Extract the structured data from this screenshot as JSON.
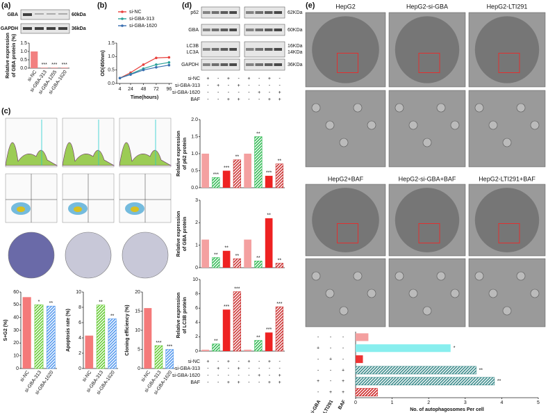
{
  "panel_labels": [
    "(a)",
    "(b)",
    "(c)",
    "(d)",
    "(e)"
  ],
  "blot_a": [
    {
      "label": "GBA",
      "size": "60kDa"
    },
    {
      "label": "GAPDH",
      "size": "36kDa"
    }
  ],
  "blot_d": [
    {
      "labels": [
        "p62"
      ],
      "sizes": [
        "62KDa"
      ]
    },
    {
      "labels": [
        "GBA"
      ],
      "sizes": [
        "60KDa"
      ]
    },
    {
      "labels": [
        "LC3B",
        "LC3A"
      ],
      "sizes": [
        "16KDa",
        "14KDa"
      ]
    },
    {
      "labels": [
        "GAPDH"
      ],
      "sizes": [
        "36KDa"
      ]
    }
  ],
  "treatment_d": [
    {
      "name": "si-NC",
      "signs": [
        "+",
        "-",
        "+",
        "-",
        "+",
        "-",
        "+",
        "-"
      ]
    },
    {
      "name": "si-GBA-313",
      "signs": [
        "-",
        "+",
        "-",
        "+",
        "-",
        "-",
        "-",
        "-"
      ]
    },
    {
      "name": "si-GBA-1620",
      "signs": [
        "-",
        "-",
        "-",
        "-",
        "-",
        "+",
        "-",
        "+"
      ]
    },
    {
      "name": "BAF",
      "signs": [
        "-",
        "-",
        "+",
        "+",
        "-",
        "-",
        "+",
        "+"
      ]
    }
  ],
  "tem_titles": [
    "HepG2",
    "HepG2-si-GBA",
    "HepG2-LTI291",
    "HepG2+BAF",
    "HepG2-si-GBA+BAF",
    "HepG2-LTI291+BAF"
  ],
  "treatment_e": {
    "columns": [
      "si-GBA",
      "LTI291",
      "BAF"
    ],
    "rows": [
      [
        "-",
        "-",
        "-"
      ],
      [
        "+",
        "-",
        "-"
      ],
      [
        "-",
        "+",
        "-"
      ],
      [
        "-",
        "-",
        "+"
      ],
      [
        "+",
        "-",
        "+"
      ],
      [
        "-",
        "+",
        "+"
      ]
    ]
  },
  "chart_data": [
    {
      "type": "bar",
      "ylabel": [
        "Relative expression",
        "of GBA protein (%)"
      ],
      "categories": [
        "si-NC",
        "si-GBA-313",
        "si-GBA-1255",
        "si-GBA-1620"
      ],
      "values": [
        1.0,
        0.03,
        0.03,
        0.03
      ],
      "colors": [
        "#f28080",
        "#f28080",
        "#f28080",
        "#f28080"
      ],
      "patterns": [
        "solid",
        "solid",
        "solid",
        "solid"
      ],
      "annotations": [
        null,
        "***",
        "***",
        "***"
      ],
      "ylim": [
        0,
        1.5
      ],
      "yticks": [
        {
          "value": 0,
          "label": "0.0"
        },
        {
          "value": 0.5,
          "label": "0.5"
        },
        {
          "value": 1,
          "label": "1.0"
        },
        {
          "value": 1.5,
          "label": "1.5"
        }
      ]
    },
    {
      "type": "line",
      "xlabel": "Time(hours)",
      "ylabel": [
        "OD(450nm)"
      ],
      "x": [
        4,
        24,
        48,
        72,
        96
      ],
      "series": [
        {
          "name": "si-NC",
          "color": "#e8403c",
          "values": [
            0.2,
            0.4,
            0.7,
            0.95,
            0.97
          ]
        },
        {
          "name": "si-GBA-313",
          "color": "#2aa198",
          "values": [
            0.2,
            0.35,
            0.55,
            0.7,
            0.78
          ]
        },
        {
          "name": "si-GBA-1620",
          "color": "#3a6fb0",
          "values": [
            0.2,
            0.33,
            0.5,
            0.6,
            0.68
          ]
        }
      ],
      "xlim": [
        -2,
        102
      ],
      "xticks": [
        4,
        24,
        48,
        72,
        96
      ],
      "ylim": [
        0,
        1.5
      ],
      "yticks": [
        {
          "value": 0,
          "label": "0.0"
        },
        {
          "value": 0.5,
          "label": "0.5"
        },
        {
          "value": 1,
          "label": "1.0"
        },
        {
          "value": 1.5,
          "label": "1.5"
        }
      ]
    },
    {
      "type": "bar",
      "ylabel": [
        "S+G2 (%)"
      ],
      "categories": [
        "si-NC",
        "si-GBA-313",
        "si-GBA-1620"
      ],
      "values": [
        56,
        50,
        49
      ],
      "colors": [
        "#f47a7a",
        "#66cc33",
        "#5599ee"
      ],
      "patterns": [
        "solid",
        "hatch",
        "hatch"
      ],
      "annotations": [
        null,
        "*",
        "**"
      ],
      "ylim": [
        0,
        60
      ],
      "yticks": [
        0,
        10,
        20,
        30,
        40,
        50,
        60
      ]
    },
    {
      "type": "bar",
      "ylabel": [
        "Apoptosis rate (%)"
      ],
      "categories": [
        "si-NC",
        "si-GBA-313",
        "si-GBA-1620"
      ],
      "values": [
        4.3,
        8.3,
        6.5
      ],
      "colors": [
        "#f47a7a",
        "#66cc33",
        "#5599ee"
      ],
      "patterns": [
        "solid",
        "hatch",
        "hatch"
      ],
      "annotations": [
        null,
        "**",
        "**"
      ],
      "ylim": [
        0,
        10
      ],
      "yticks": [
        0,
        2,
        4,
        6,
        8,
        10
      ]
    },
    {
      "type": "bar",
      "ylabel": [
        "Cloning efficiency (%)"
      ],
      "categories": [
        "si-NC",
        "si-GBA-313",
        "si-GBA-1620"
      ],
      "values": [
        15.8,
        6,
        5
      ],
      "colors": [
        "#f47a7a",
        "#66cc33",
        "#5599ee"
      ],
      "patterns": [
        "solid",
        "hatch",
        "hatch"
      ],
      "annotations": [
        null,
        "***",
        "***"
      ],
      "ylim": [
        0,
        20
      ],
      "yticks": [
        0,
        5,
        10,
        15,
        20
      ]
    },
    {
      "type": "bar",
      "ylabel": [
        "Relative expression",
        "of p62 protein"
      ],
      "values": [
        1,
        0.3,
        0.5,
        0.82,
        1,
        1.5,
        0.35,
        0.7
      ],
      "colors": [
        "#f4a0a0",
        "#33bb55",
        "#ee2222",
        "#cc3333",
        "#f4a0a0",
        "#33bb55",
        "#ee2222",
        "#cc3333"
      ],
      "patterns": [
        "solid",
        "hatch",
        "solid",
        "hatch",
        "solid",
        "hatch",
        "solid",
        "hatch"
      ],
      "annotations": [
        null,
        "***",
        "***",
        "**",
        null,
        "**",
        "***",
        "**"
      ],
      "ylim": [
        0,
        2
      ],
      "yticks": [
        {
          "value": 0,
          "label": "0.0"
        },
        {
          "value": 0.5,
          "label": "0.5"
        },
        {
          "value": 1,
          "label": "1.0"
        },
        {
          "value": 1.5,
          "label": "1.5"
        },
        {
          "value": 2,
          "label": "2.0"
        }
      ]
    },
    {
      "type": "bar",
      "ylabel": [
        "Relative expression",
        "of GBA protein"
      ],
      "values": [
        1.25,
        0.45,
        0.75,
        0.4,
        1.25,
        0.3,
        2.2,
        0.2
      ],
      "colors": [
        "#f4a0a0",
        "#33bb55",
        "#ee2222",
        "#cc3333",
        "#f4a0a0",
        "#33bb55",
        "#ee2222",
        "#cc3333"
      ],
      "patterns": [
        "solid",
        "hatch",
        "solid",
        "hatch",
        "solid",
        "hatch",
        "solid",
        "hatch"
      ],
      "annotations": [
        null,
        "**",
        "**",
        "**",
        null,
        "**",
        "**",
        "**"
      ],
      "ylim": [
        0,
        3
      ],
      "yticks": [
        0,
        1,
        2,
        3
      ]
    },
    {
      "type": "bar",
      "ylabel": [
        "Relative expression",
        "of LC3B protein"
      ],
      "values": [
        0.2,
        1,
        5.8,
        8.3,
        0.2,
        1.5,
        2.6,
        6.2
      ],
      "colors": [
        "#f4a0a0",
        "#33bb55",
        "#ee2222",
        "#cc3333",
        "#f4a0a0",
        "#33bb55",
        "#ee2222",
        "#cc3333"
      ],
      "patterns": [
        "solid",
        "hatch",
        "solid",
        "hatch",
        "solid",
        "hatch",
        "solid",
        "hatch"
      ],
      "annotations": [
        null,
        "**",
        "***",
        "***",
        null,
        "**",
        "***",
        "***"
      ],
      "ylim": [
        0,
        10
      ],
      "yticks": [
        0,
        2,
        4,
        6,
        8,
        10
      ]
    },
    {
      "type": "hbar",
      "xlabel": "No. of autophagosomes Per cell",
      "values": [
        0.35,
        2.6,
        0.2,
        3.3,
        3.8,
        0.6
      ],
      "colors": [
        "#f4a0a0",
        "#88eeee",
        "#ee3333",
        "#3a8a8a",
        "#3a8a8a",
        "#cc2222"
      ],
      "patterns": [
        "solid",
        "solid",
        "solid",
        "hatch",
        "hatch",
        "hatch"
      ],
      "annotations": [
        null,
        "*",
        null,
        "**",
        "**",
        null
      ],
      "xlim": [
        0,
        5
      ],
      "xticks": [
        0,
        1,
        2,
        3,
        4,
        5
      ]
    }
  ]
}
